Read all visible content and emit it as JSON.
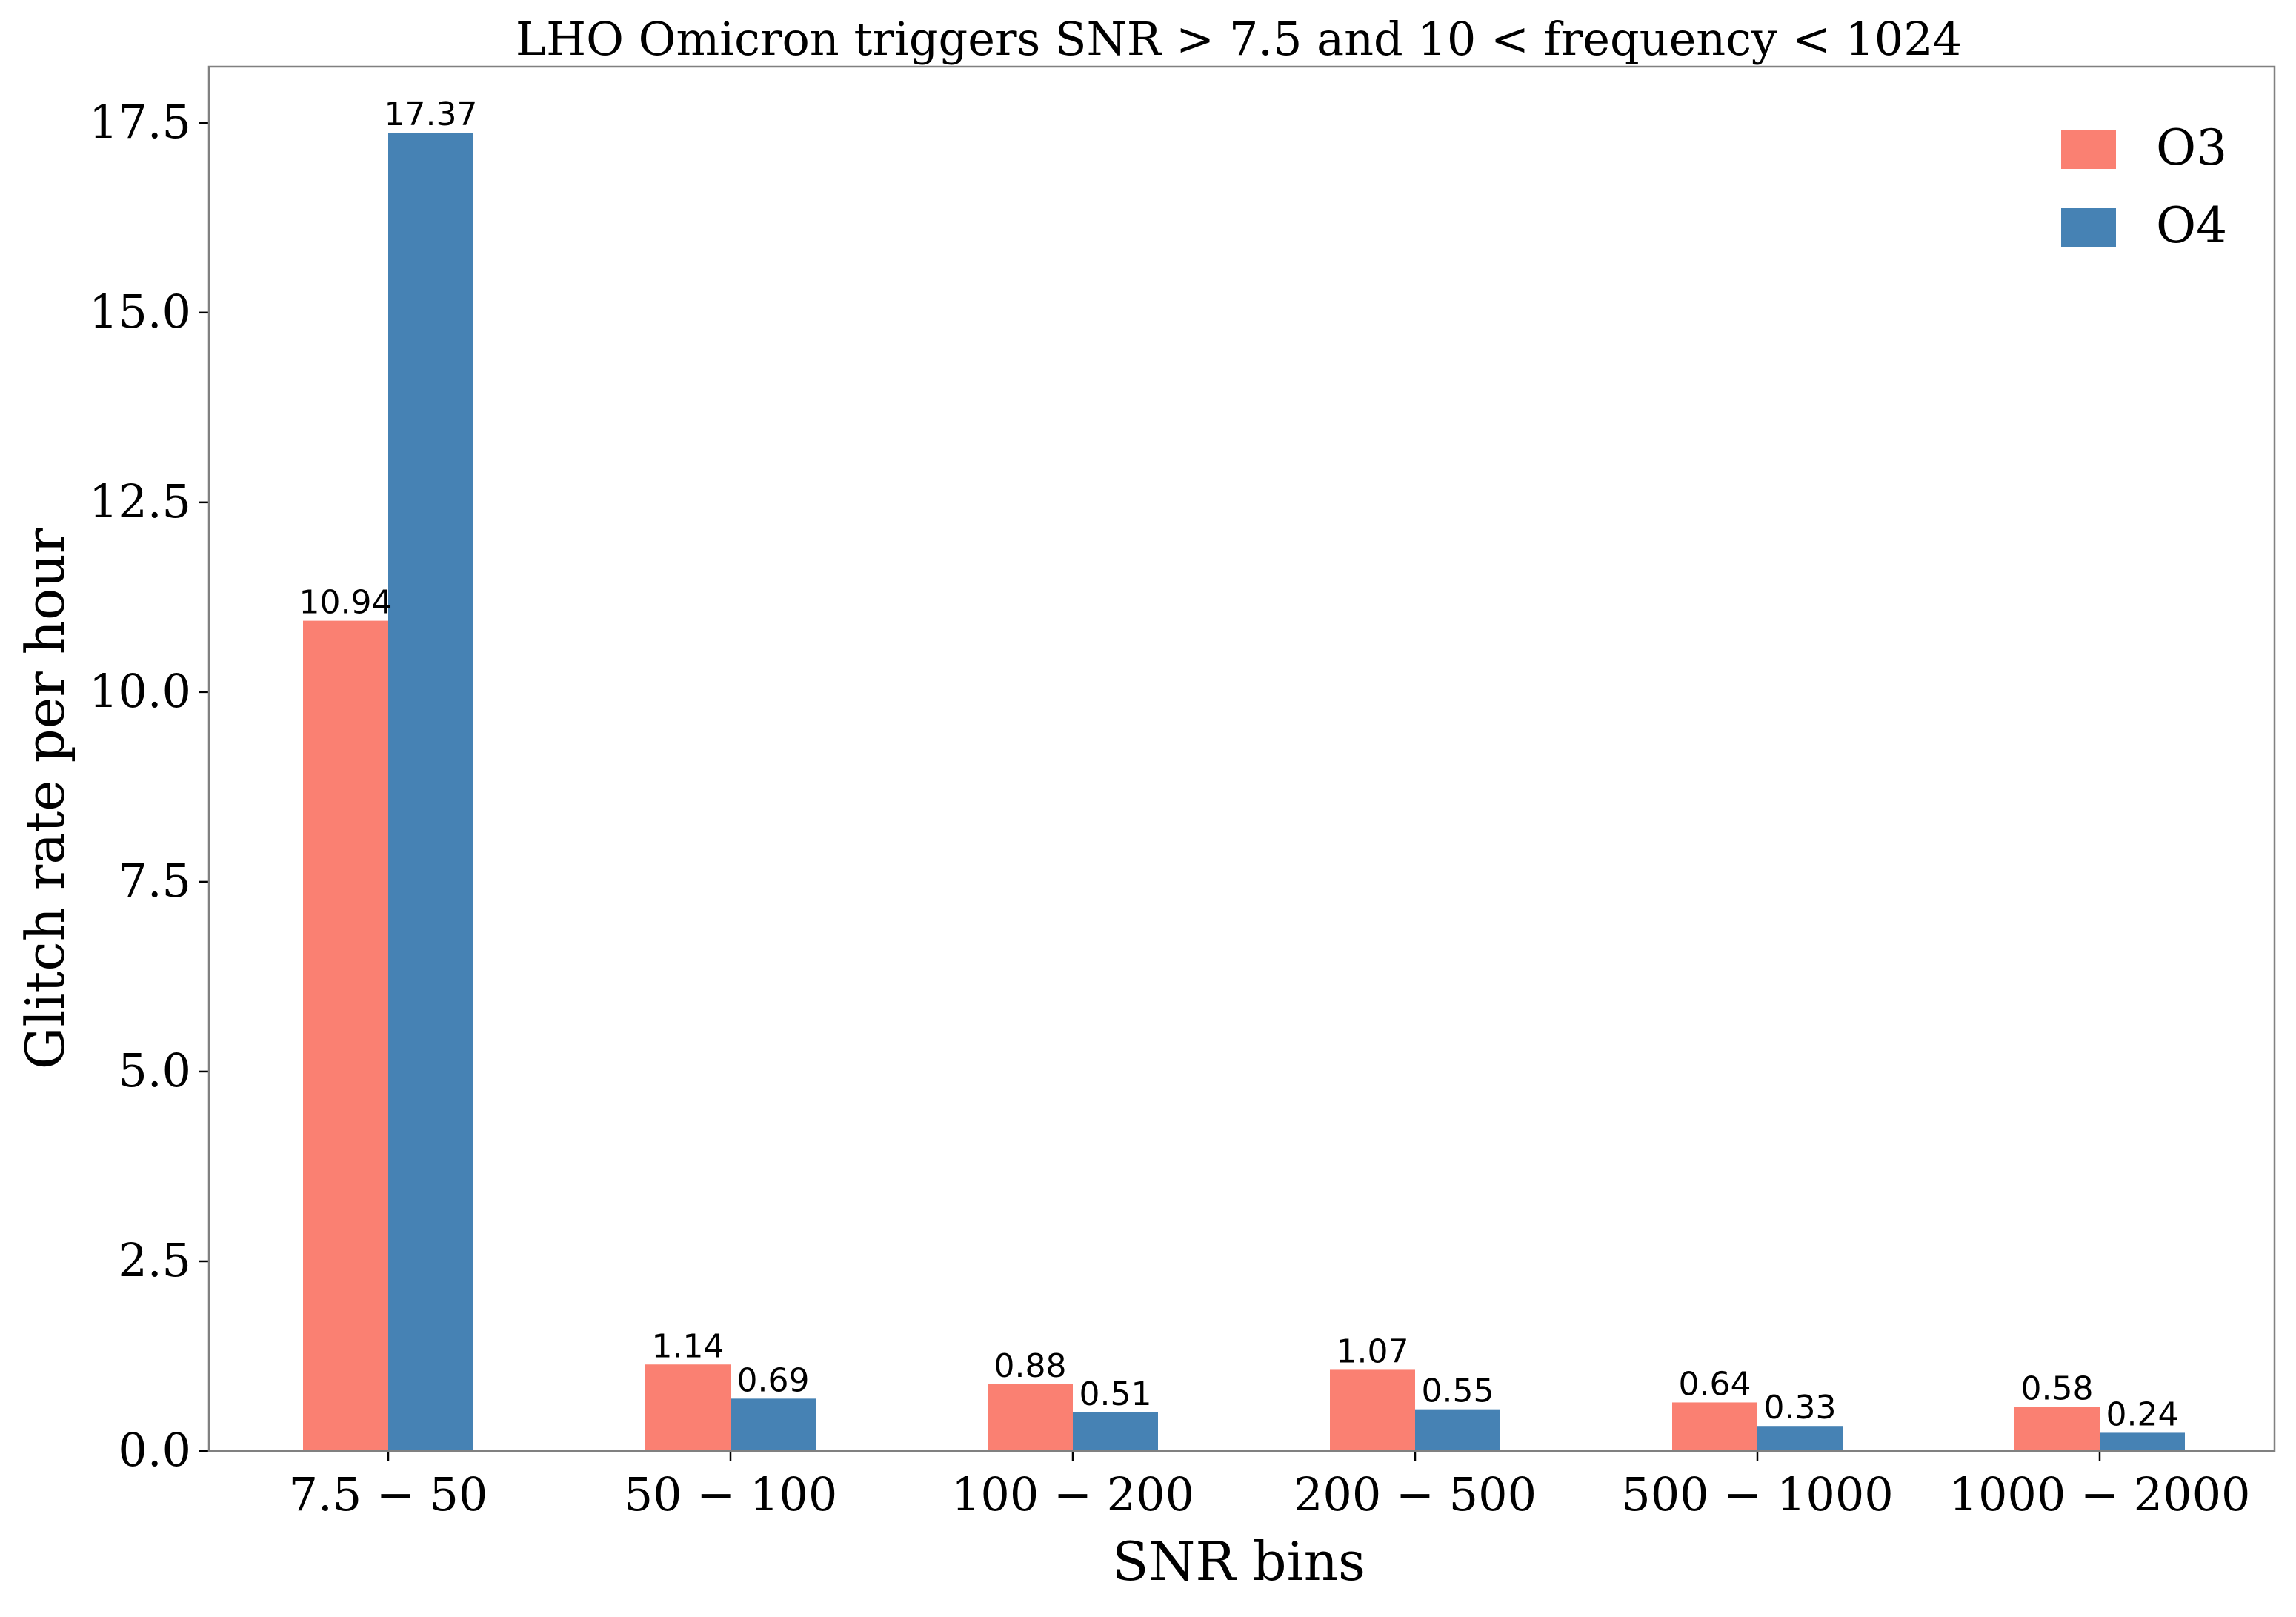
{
  "chart_data": {
    "type": "bar",
    "title": "LHO Omicron triggers SNR  >  7.5 and 10  <  frequency  < 1024",
    "xlabel": "SNR bins",
    "ylabel": "Glitch rate per hour",
    "categories": [
      "7.5 − 50",
      "50 − 100",
      "100 − 200",
      "200 − 500",
      "500 − 1000",
      "1000 − 2000"
    ],
    "series": [
      {
        "name": "O3",
        "color": "#fa8072",
        "values": [
          10.94,
          1.14,
          0.88,
          1.07,
          0.64,
          0.58
        ],
        "labels": [
          "10.94",
          "1.14",
          "0.88",
          "1.07",
          "0.64",
          "0.58"
        ]
      },
      {
        "name": "O4",
        "color": "#4682b4",
        "values": [
          17.37,
          0.69,
          0.51,
          0.55,
          0.33,
          0.24
        ],
        "labels": [
          "17.37",
          "0.69",
          "0.51",
          "0.55",
          "0.33",
          "0.24"
        ]
      }
    ],
    "ylim": [
      0,
      18.24
    ],
    "yticks": [
      0.0,
      2.5,
      5.0,
      7.5,
      10.0,
      12.5,
      15.0,
      17.5
    ],
    "ytick_labels": [
      "0.0",
      "2.5",
      "5.0",
      "7.5",
      "10.0",
      "12.5",
      "15.0",
      "17.5"
    ],
    "grid": false,
    "legend_position": "top-right"
  }
}
